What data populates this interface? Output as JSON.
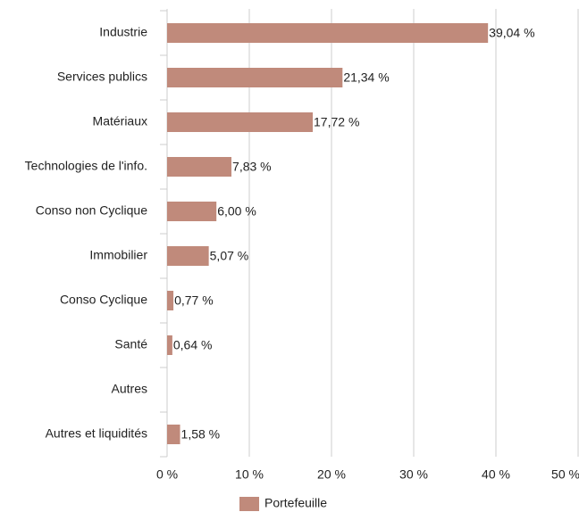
{
  "chart_data": {
    "type": "barh",
    "categories": [
      "Industrie",
      "Services publics",
      "Matériaux",
      "Technologies de l'info.",
      "Conso non Cyclique",
      "Immobilier",
      "Conso Cyclique",
      "Santé",
      "Autres",
      "Autres et liquidités"
    ],
    "series": [
      {
        "name": "Portefeuille",
        "color": "#c08a7b",
        "values": [
          39.04,
          21.34,
          17.72,
          7.83,
          6.0,
          5.07,
          0.77,
          0.64,
          null,
          1.58
        ],
        "value_labels": [
          "39,04 %",
          "21,34 %",
          "17,72 %",
          "7,83 %",
          "6,00 %",
          "5,07 %",
          "0,77 %",
          "0,64 %",
          null,
          "1,58 %"
        ]
      }
    ],
    "xlim": [
      0,
      50
    ],
    "xticks": [
      {
        "value": 0,
        "label": "0 %"
      },
      {
        "value": 10,
        "label": "10 %"
      },
      {
        "value": 20,
        "label": "20 %"
      },
      {
        "value": 30,
        "label": "30 %"
      },
      {
        "value": 40,
        "label": "40 %"
      },
      {
        "value": 50,
        "label": "50 %"
      }
    ],
    "grid": true
  }
}
